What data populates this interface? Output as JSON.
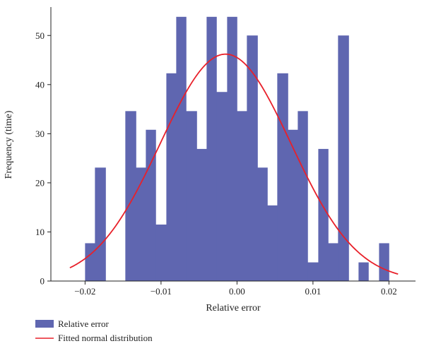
{
  "chart_data": {
    "type": "bar",
    "xlabel": "Relative error",
    "ylabel": "Frequency (time)",
    "xlim": [
      -0.0245,
      0.0235
    ],
    "ylim": [
      0,
      55.5
    ],
    "x_ticks": [
      -0.02,
      -0.01,
      0.0,
      0.01,
      0.02
    ],
    "x_tick_labels": [
      "−0.02",
      "−0.01",
      "0.00",
      "0.01",
      "0.02"
    ],
    "y_ticks": [
      0,
      10,
      20,
      30,
      40,
      50
    ],
    "y_tick_labels": [
      "0",
      "10",
      "20",
      "30",
      "40",
      "50"
    ],
    "grid": false,
    "legend_position": "bottom-left",
    "series": [
      {
        "name": "Relative error",
        "kind": "histogram",
        "color": "#5f66b0",
        "bin_edges": [
          -0.02,
          -0.0187,
          -0.0173,
          -0.016,
          -0.0147,
          -0.0133,
          -0.012,
          -0.0107,
          -0.0093,
          -0.008,
          -0.0067,
          -0.0053,
          -0.004,
          -0.0027,
          -0.0013,
          0.0,
          0.0013,
          0.0027,
          0.004,
          0.0053,
          0.0067,
          0.008,
          0.0093,
          0.0107,
          0.012,
          0.0133,
          0.0147,
          0.016,
          0.0173,
          0.0187,
          0.02
        ],
        "values": [
          7.7,
          23.1,
          0,
          0,
          34.6,
          23.1,
          30.8,
          11.5,
          42.3,
          53.8,
          34.6,
          26.9,
          53.8,
          38.5,
          53.8,
          34.6,
          50.0,
          23.1,
          15.4,
          42.3,
          30.8,
          34.6,
          3.8,
          26.9,
          7.7,
          50.0,
          0,
          3.8,
          0,
          7.7
        ]
      },
      {
        "name": "Fitted normal distribution",
        "kind": "line",
        "color": "#e8202a",
        "x_range": [
          -0.022,
          0.0212
        ],
        "mean": -0.0015,
        "std": 0.0086,
        "peak": 46.2
      }
    ]
  }
}
